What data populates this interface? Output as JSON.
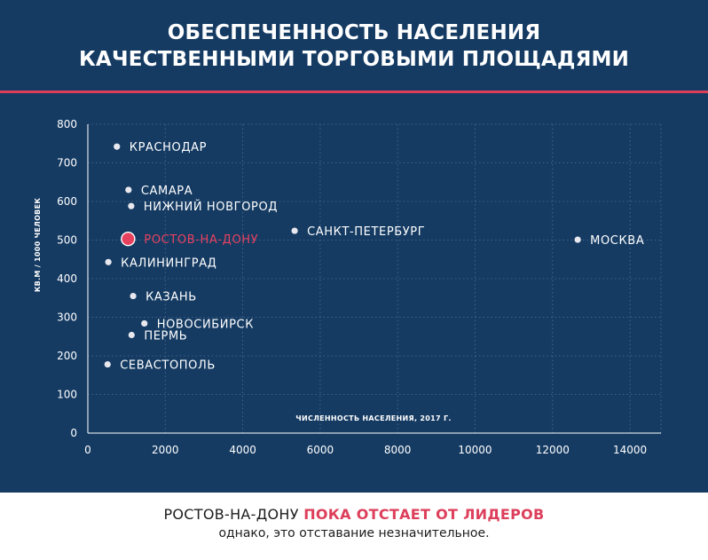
{
  "title": {
    "line1": "ОБЕСПЕЧЕННОСТЬ НАСЕЛЕНИЯ",
    "line2": "КАЧЕСТВЕННЫМИ ТОРГОВЫМИ ПЛОЩАДЯМИ"
  },
  "colors": {
    "background": "#153b63",
    "accent": "#dd3f5b",
    "point": "#e8e8ee",
    "highlight": "#e8415e"
  },
  "chart_data": {
    "type": "scatter",
    "xlabel": "ЧИСЛЕННОСТЬ НАСЕЛЕНИЯ, 2017 Г.",
    "ylabel": "КВ.М / 1000 ЧЕЛОВЕК",
    "xlim": [
      0,
      14800
    ],
    "ylim": [
      0,
      800
    ],
    "xticks": [
      0,
      2000,
      4000,
      6000,
      8000,
      10000,
      12000,
      14000
    ],
    "yticks": [
      0,
      100,
      200,
      300,
      400,
      500,
      600,
      700,
      800
    ],
    "grid": true,
    "points": [
      {
        "label": "КРАСНОДАР",
        "x": 750,
        "y": 742,
        "highlight": false
      },
      {
        "label": "САМАРА",
        "x": 1050,
        "y": 630,
        "highlight": false
      },
      {
        "label": "НИЖНИЙ НОВГОРОД",
        "x": 1120,
        "y": 588,
        "highlight": false
      },
      {
        "label": "РОСТОВ-НА-ДОНУ",
        "x": 1040,
        "y": 503,
        "highlight": true
      },
      {
        "label": "САНКТ-ПЕТЕРБУРГ",
        "x": 5340,
        "y": 524,
        "highlight": false
      },
      {
        "label": "МОСКВА",
        "x": 12650,
        "y": 501,
        "highlight": false
      },
      {
        "label": "КАЛИНИНГРАД",
        "x": 530,
        "y": 443,
        "highlight": false
      },
      {
        "label": "КАЗАНЬ",
        "x": 1170,
        "y": 355,
        "highlight": false
      },
      {
        "label": "НОВОСИБИРСК",
        "x": 1460,
        "y": 284,
        "highlight": false
      },
      {
        "label": "ПЕРМЬ",
        "x": 1130,
        "y": 254,
        "highlight": false
      },
      {
        "label": "СЕВАСТОПОЛЬ",
        "x": 510,
        "y": 178,
        "highlight": false
      }
    ]
  },
  "footer": {
    "line1_prefix": "РОСТОВ-НА-ДОНУ ",
    "line1_highlight": "ПОКА ОТСТАЕТ ОТ ЛИДЕРОВ",
    "line2": "однако, это отставание незначительное."
  }
}
